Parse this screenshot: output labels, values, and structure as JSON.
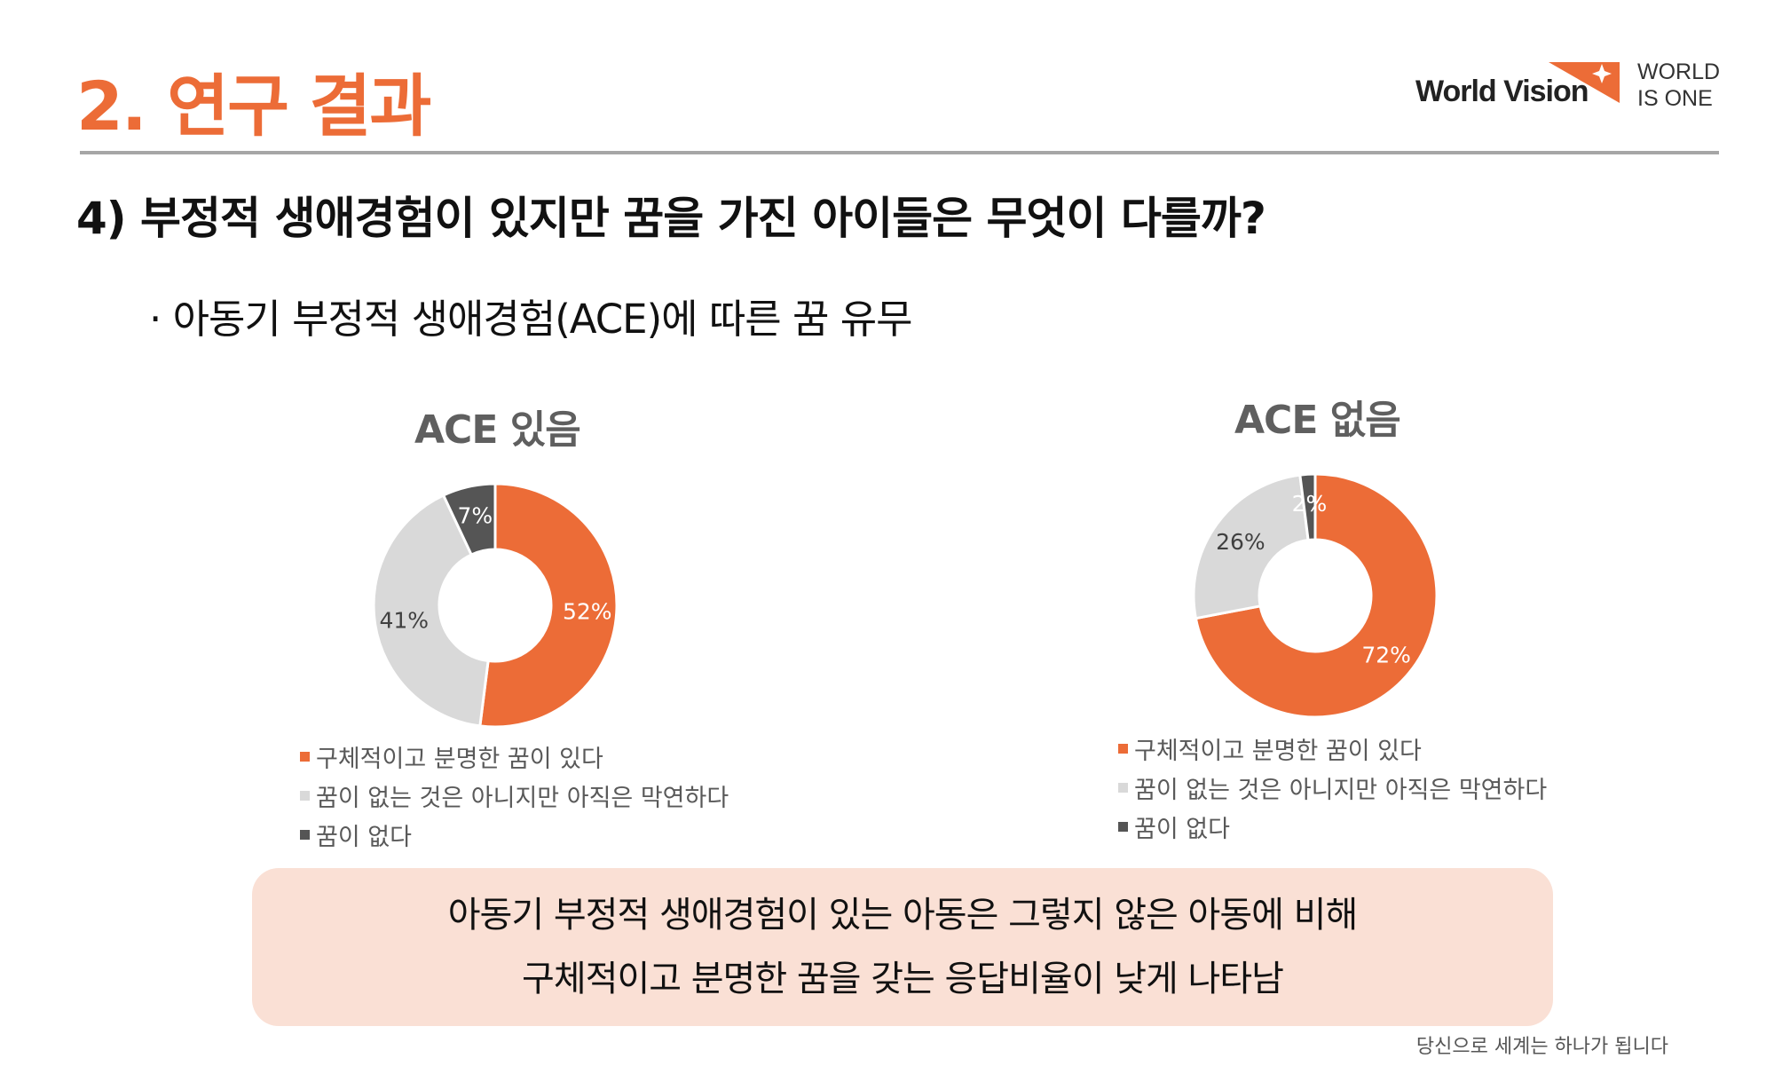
{
  "header": {
    "section_title": "2. 연구 결과",
    "brand_name": "World Vision",
    "brand_tagline": "WORLD\nIS ONE"
  },
  "question": "4) 부정적 생애경험이 있지만 꿈을 가진 아이들은 무엇이 다를까?",
  "subtitle": "· 아동기 부정적 생애경험(ACE)에 따른 꿈 유무",
  "colors": {
    "orange": "#ec6c37",
    "light_gray": "#d9d9d9",
    "dark_gray": "#555555"
  },
  "chart_data": [
    {
      "type": "pie",
      "title": "ACE 있음",
      "categories": [
        "구체적이고 분명한 꿈이 있다",
        "꿈이 없는 것은 아니지만 아직은 막연하다",
        "꿈이 없다"
      ],
      "values": [
        52,
        41,
        7
      ],
      "labels": [
        "52%",
        "41%",
        "7%"
      ],
      "colors": [
        "#ec6c37",
        "#d9d9d9",
        "#555555"
      ],
      "legend": "bottom"
    },
    {
      "type": "pie",
      "title": "ACE 없음",
      "categories": [
        "구체적이고 분명한 꿈이 있다",
        "꿈이 없는 것은 아니지만 아직은 막연하다",
        "꿈이 없다"
      ],
      "values": [
        72,
        26,
        2
      ],
      "labels": [
        "72%",
        "26%",
        "2%"
      ],
      "colors": [
        "#ec6c37",
        "#d9d9d9",
        "#555555"
      ],
      "legend": "bottom"
    }
  ],
  "summary": {
    "line1": "아동기 부정적 생애경험이 있는 아동은 그렇지 않은 아동에 비해",
    "line2": "구체적이고 분명한 꿈을 갖는 응답비율이 낮게 나타남"
  },
  "footer": "당신으로 세계는 하나가 됩니다"
}
